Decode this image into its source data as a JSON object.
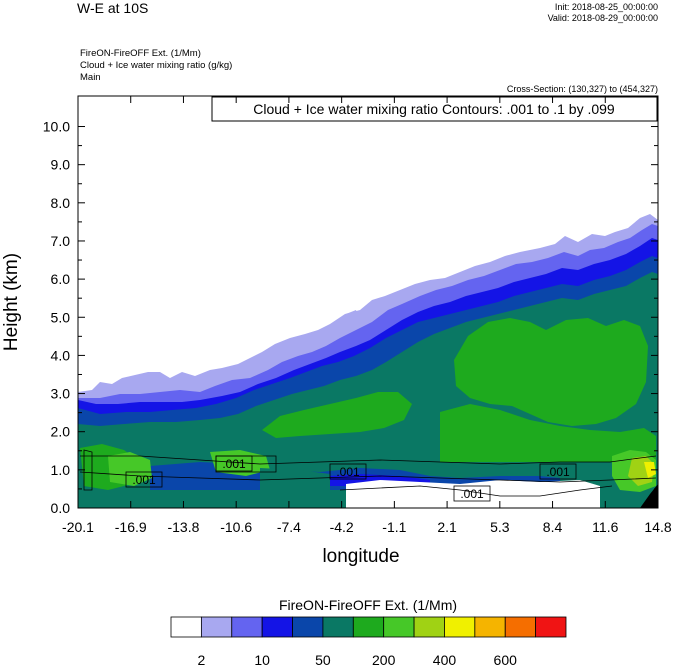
{
  "header": {
    "title": "W-E at 10S",
    "init": "Init: 2018-08-25_00:00:00",
    "valid": "Valid: 2018-08-29_00:00:00",
    "sub1": "FireON-FireOFF Ext.   (1/Mm)",
    "sub2": "Cloud + Ice water mixing ratio   (g/kg)",
    "sub3": "Main",
    "cross_section": "Cross-Section: (130,327) to (454,327)",
    "contour_info": "Cloud + Ice water mixing ratio Contours: .001 to .1 by .099"
  },
  "chart_data": {
    "type": "heatmap",
    "title": "W-E at 10S",
    "xlabel": "longitude",
    "ylabel": "Height (km)",
    "xlim": [
      -20.1,
      14.8
    ],
    "ylim": [
      0.0,
      10.8
    ],
    "x_ticks": [
      "-20.1",
      "-16.9",
      "-13.8",
      "-10.6",
      "-7.4",
      "-4.2",
      "-1.1",
      "2.1",
      "5.3",
      "8.4",
      "11.6",
      "14.8"
    ],
    "y_ticks": [
      "0.0",
      "1.0",
      "2.0",
      "3.0",
      "4.0",
      "5.0",
      "6.0",
      "7.0",
      "8.0",
      "9.0",
      "10.0"
    ],
    "contour_labels": [
      ".001",
      ".001",
      ".001",
      ".001",
      ".001"
    ],
    "fill_levels": [
      {
        "color": "#ffffff"
      },
      {
        "color": "#a8a8f0"
      },
      {
        "color": "#6464f0"
      },
      {
        "color": "#1414e6"
      },
      {
        "color": "#0a46aa"
      },
      {
        "color": "#0a7864"
      },
      {
        "color": "#1eaa1e"
      },
      {
        "color": "#46c828"
      },
      {
        "color": "#a0d214"
      },
      {
        "color": "#f0f000"
      },
      {
        "color": "#f5b400"
      },
      {
        "color": "#f56e00"
      },
      {
        "color": "#f01414"
      }
    ],
    "colorbar_title": "FireON-FireOFF Ext.  (1/Mm)",
    "colorbar_labels": [
      "2",
      "10",
      "50",
      "200",
      "400",
      "600"
    ]
  }
}
